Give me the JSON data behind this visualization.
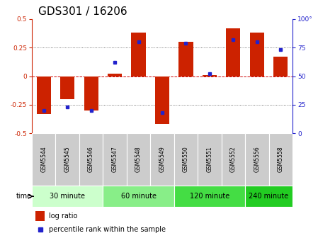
{
  "title": "GDS301 / 16206",
  "samples": [
    "GSM5544",
    "GSM5545",
    "GSM5546",
    "GSM5547",
    "GSM5548",
    "GSM5549",
    "GSM5550",
    "GSM5551",
    "GSM5552",
    "GSM5556",
    "GSM5558"
  ],
  "log_ratio": [
    -0.33,
    -0.2,
    -0.3,
    0.02,
    0.38,
    -0.42,
    0.3,
    0.01,
    0.42,
    0.38,
    0.17
  ],
  "percentile": [
    20,
    23,
    20,
    62,
    80,
    18,
    79,
    52,
    82,
    80,
    73
  ],
  "ylim": [
    -0.5,
    0.5
  ],
  "yticks": [
    -0.5,
    -0.25,
    0,
    0.25,
    0.5
  ],
  "y2lim": [
    0,
    100
  ],
  "y2ticks": [
    0,
    25,
    50,
    75,
    100
  ],
  "y2labels": [
    "0",
    "25",
    "50",
    "75",
    "100°"
  ],
  "bar_color": "#CC2200",
  "dot_color": "#2222CC",
  "zero_line_color": "#CC0000",
  "groups": [
    {
      "label": "30 minute",
      "start": 0,
      "end": 3,
      "color": "#ccffcc"
    },
    {
      "label": "60 minute",
      "start": 3,
      "end": 6,
      "color": "#88ee88"
    },
    {
      "label": "120 minute",
      "start": 6,
      "end": 9,
      "color": "#44dd44"
    },
    {
      "label": "240 minute",
      "start": 9,
      "end": 11,
      "color": "#22cc22"
    }
  ],
  "legend_bar_label": "log ratio",
  "legend_dot_label": "percentile rank within the sample",
  "time_label": "time",
  "title_fontsize": 11,
  "tick_fontsize": 6.5,
  "sample_fontsize": 5.5,
  "group_fontsize": 7,
  "legend_fontsize": 7
}
